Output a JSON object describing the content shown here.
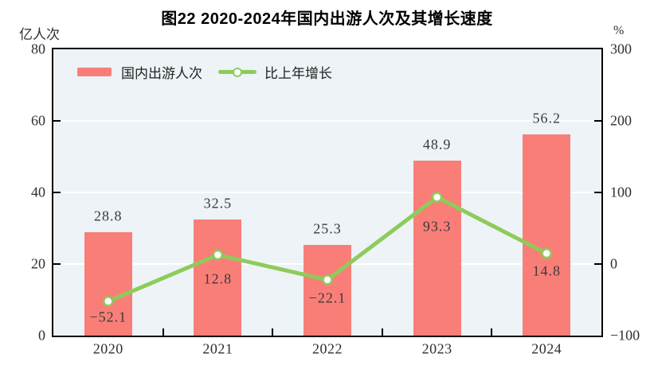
{
  "figure": {
    "title": "图22  2020-2024年国内出游人次及其增长速度"
  },
  "chart_data": {
    "type": "combo",
    "title": "图22  2020-2024年国内出游人次及其增长速度",
    "categories": [
      "2020",
      "2021",
      "2022",
      "2023",
      "2024"
    ],
    "series": [
      {
        "name": "国内出游人次",
        "type": "bar",
        "axis": "left",
        "values": [
          28.8,
          32.5,
          25.3,
          48.9,
          56.2
        ],
        "color": "#fa7e78"
      },
      {
        "name": "比上年增长",
        "type": "line",
        "axis": "right",
        "values": [
          -52.1,
          12.8,
          -22.1,
          93.3,
          14.8
        ],
        "color": "#8ecb5a",
        "marker": "circle-white-fill"
      }
    ],
    "left_axis": {
      "label": "亿人次",
      "min": 0,
      "max": 80,
      "ticks": [
        0,
        20,
        40,
        60,
        80
      ]
    },
    "right_axis": {
      "label": "%",
      "min": -100,
      "max": 300,
      "ticks": [
        -100,
        0,
        100,
        200,
        300
      ]
    },
    "legend": [
      "国内出游人次",
      "比上年增长"
    ],
    "legend_position": "top-left-inside",
    "grid": true,
    "colors": {
      "plot_background": "#edf3f6",
      "gridline": "#ffffff",
      "axis_border": "#000000",
      "label_text": "#3a3a3a"
    }
  }
}
